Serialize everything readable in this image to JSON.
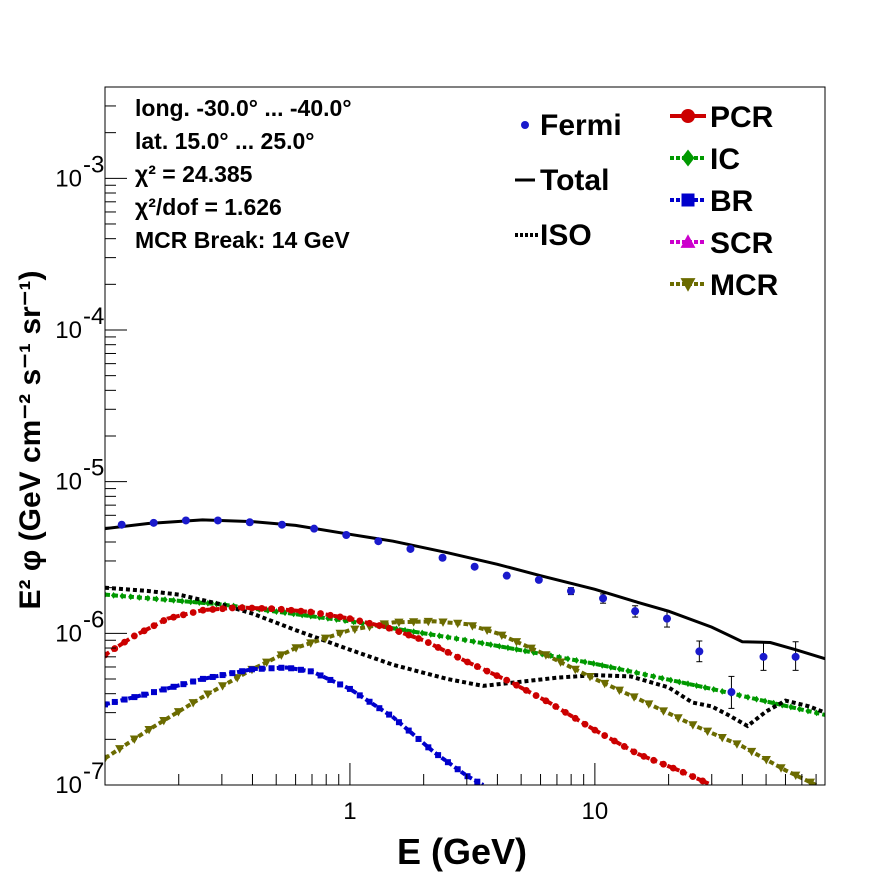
{
  "chart_data": {
    "type": "line",
    "xlabel": "E (GeV)",
    "ylabel": "E² φ (GeV cm⁻² s⁻¹ sr⁻¹)",
    "x_scale": "log",
    "y_scale": "log",
    "xlim": [
      0.1,
      87
    ],
    "ylim": [
      1e-07,
      0.004
    ],
    "x_tick_labels": [
      "1",
      "10"
    ],
    "y_tick_labels": [
      {
        "value": 1e-07,
        "base": "10",
        "exp": "-7"
      },
      {
        "value": 1e-06,
        "base": "10",
        "exp": "-6"
      },
      {
        "value": 1e-05,
        "base": "10",
        "exp": "-5"
      },
      {
        "value": 0.0001,
        "base": "10",
        "exp": "-4"
      },
      {
        "value": 0.001,
        "base": "10",
        "exp": "-3"
      }
    ],
    "info_text": [
      "long. -30.0° ... -40.0°",
      "lat. 15.0° ... 25.0°",
      "χ² = 24.385",
      "χ²/dof = 1.626",
      "MCR Break: 14 GeV"
    ],
    "legend_left": [
      {
        "name": "Fermi",
        "style": "point",
        "color": "#1a1acc"
      },
      {
        "name": "Total",
        "style": "solid",
        "color": "#000000"
      },
      {
        "name": "ISO",
        "style": "dotted",
        "color": "#000000"
      }
    ],
    "legend_right": [
      {
        "name": "PCR",
        "style": "circle",
        "color": "#cc0000"
      },
      {
        "name": "IC",
        "style": "diamond",
        "color": "#009900"
      },
      {
        "name": "BR",
        "style": "square",
        "color": "#0000cc"
      },
      {
        "name": "SCR",
        "style": "triangle-up",
        "color": "#cc00cc"
      },
      {
        "name": "MCR",
        "style": "triangle-down",
        "color": "#6b6b00"
      }
    ],
    "fermi": {
      "x": [
        0.117,
        0.158,
        0.214,
        0.289,
        0.39,
        0.528,
        0.714,
        0.966,
        1.306,
        1.766,
        2.388,
        3.229,
        4.367,
        5.905,
        7.985,
        10.8,
        14.6,
        19.7,
        26.7,
        36.1,
        48.8,
        66.0
      ],
      "y": [
        5.2e-06,
        5.35e-06,
        5.55e-06,
        5.55e-06,
        5.4e-06,
        5.2e-06,
        4.9e-06,
        4.45e-06,
        4.05e-06,
        3.6e-06,
        3.15e-06,
        2.75e-06,
        2.4e-06,
        2.25e-06,
        1.9e-06,
        1.7e-06,
        1.4e-06,
        1.25e-06,
        7.6e-07,
        4.1e-07,
        7e-07,
        7e-07
      ],
      "err_low": [
        0,
        0,
        0,
        0,
        0,
        0,
        0,
        0,
        0,
        0,
        0,
        0,
        0,
        0,
        1e-07,
        1.2e-07,
        1.2e-07,
        1.5e-07,
        1.1e-07,
        9e-08,
        1.3e-07,
        1.3e-07
      ],
      "err_high": [
        0,
        0,
        0,
        0,
        0,
        0,
        0,
        0,
        0,
        0,
        0,
        0,
        0,
        0,
        1e-07,
        1.2e-07,
        1.2e-07,
        1.5e-07,
        1.3e-07,
        1.1e-07,
        1.8e-07,
        1.8e-07
      ]
    },
    "total": {
      "x": [
        0.1,
        0.15,
        0.25,
        0.4,
        0.6,
        1.0,
        1.5,
        2.5,
        4.0,
        6.0,
        10.0,
        15.0,
        20.0,
        30.0,
        40.0,
        52.0,
        66.0,
        87.0
      ],
      "y": [
        4.9e-06,
        5.3e-06,
        5.6e-06,
        5.45e-06,
        5.15e-06,
        4.5e-06,
        4.05e-06,
        3.4e-06,
        2.85e-06,
        2.4e-06,
        1.95e-06,
        1.6e-06,
        1.4e-06,
        1.1e-06,
        8.8e-07,
        8.7e-07,
        7.8e-07,
        6.8e-07
      ]
    },
    "iso": {
      "x": [
        0.1,
        0.15,
        0.2,
        0.3,
        0.4,
        0.6,
        1.0,
        1.5,
        2.5,
        3.5,
        5.0,
        7.0,
        10.0,
        14.0,
        20.0,
        25.0,
        30.0,
        35.0,
        42.0,
        50.0,
        60.0,
        75.0,
        87.0
      ],
      "y": [
        2e-06,
        1.9e-06,
        1.8e-06,
        1.55e-06,
        1.35e-06,
        1.05e-06,
        7.8e-07,
        6.2e-07,
        5e-07,
        4.5e-07,
        4.8e-07,
        5.1e-07,
        5.3e-07,
        5.2e-07,
        4.4e-07,
        3.5e-07,
        3.3e-07,
        2.9e-07,
        2.45e-07,
        3.05e-07,
        3.6e-07,
        3.3e-07,
        3e-07
      ]
    },
    "series": [
      {
        "name": "PCR",
        "color": "#cc0000",
        "marker": "circle",
        "x": [
          0.1,
          0.13,
          0.18,
          0.25,
          0.35,
          0.5,
          0.7,
          1.0,
          1.4,
          2.0,
          3.0,
          4.5,
          6.5,
          10.0,
          15.0,
          22.0,
          30.0
        ],
        "y": [
          7.2e-07,
          9.5e-07,
          1.25e-06,
          1.42e-06,
          1.48e-06,
          1.45e-06,
          1.38e-06,
          1.25e-06,
          1.1e-06,
          9e-07,
          6.5e-07,
          4.8e-07,
          3.5e-07,
          2.3e-07,
          1.6e-07,
          1.25e-07,
          1e-07
        ]
      },
      {
        "name": "IC",
        "color": "#009900",
        "marker": "diamond",
        "x": [
          0.1,
          0.3,
          1.0,
          3.0,
          10.0,
          30.0,
          87.0
        ],
        "y": [
          1.8e-06,
          1.55e-06,
          1.2e-06,
          9e-07,
          6.3e-07,
          4.3e-07,
          2.9e-07
        ]
      },
      {
        "name": "BR",
        "color": "#0000cc",
        "marker": "square",
        "x": [
          0.1,
          0.15,
          0.25,
          0.4,
          0.55,
          0.7,
          1.0,
          1.5,
          2.2,
          3.0,
          3.5
        ],
        "y": [
          3.4e-07,
          4e-07,
          5e-07,
          5.8e-07,
          5.95e-07,
          5.6e-07,
          4.3e-07,
          2.8e-07,
          1.65e-07,
          1.15e-07,
          1e-07
        ]
      },
      {
        "name": "MCR",
        "color": "#6b6b00",
        "marker": "triangle-down",
        "x": [
          0.1,
          0.15,
          0.25,
          0.4,
          0.6,
          1.0,
          1.5,
          2.2,
          3.0,
          4.0,
          6.0,
          10.0,
          15.0,
          25.0,
          40.0,
          60.0,
          80.0
        ],
        "y": [
          1.5e-07,
          2.3e-07,
          3.8e-07,
          5.8e-07,
          8e-07,
          1.05e-06,
          1.18e-06,
          1.2e-06,
          1.15e-06,
          1e-06,
          7.5e-07,
          5e-07,
          3.7e-07,
          2.5e-07,
          1.8e-07,
          1.25e-07,
          1e-07
        ]
      },
      {
        "name": "SCR",
        "color": "#cc00cc",
        "marker": "triangle-up",
        "x": [],
        "y": []
      }
    ]
  }
}
